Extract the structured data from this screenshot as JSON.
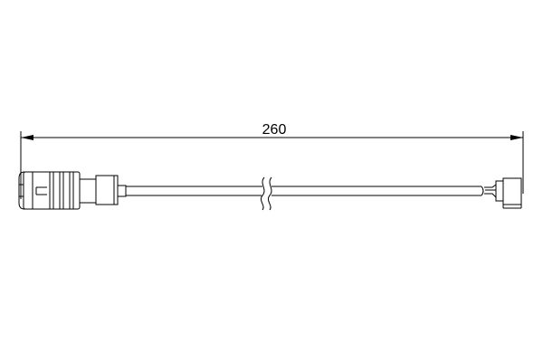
{
  "drawing": {
    "dimension": {
      "value": 260,
      "label": "260"
    },
    "line_color": "#000000",
    "background": "#ffffff"
  }
}
